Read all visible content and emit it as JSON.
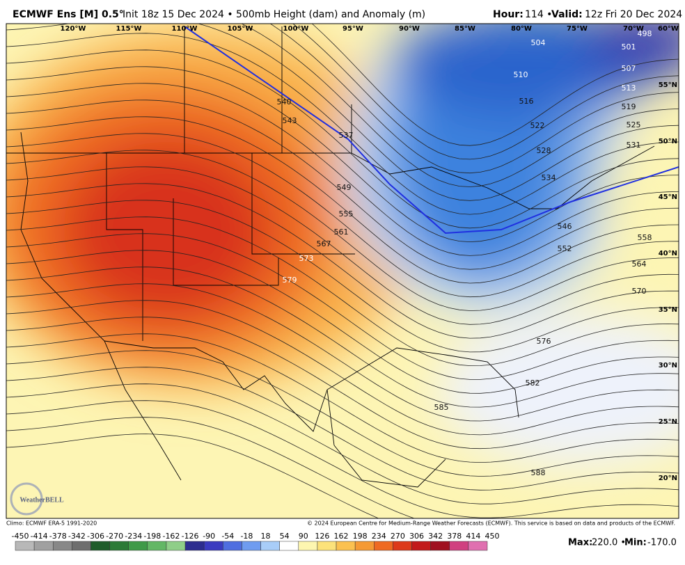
{
  "header": {
    "model": "ECMWF Ens [M] 0.5°",
    "description": "Init 18z 15 Dec 2024 • 500mb Height (dam) and Anomaly (m)",
    "hour_label": "Hour:",
    "hour": "114 •",
    "valid_label": "Valid:",
    "valid": "12z Fri 20 Dec 2024"
  },
  "map": {
    "longitudes": [
      "120°W",
      "115°W",
      "110°W",
      "105°W",
      "100°W",
      "95°W",
      "90°W",
      "85°W",
      "80°W",
      "75°W",
      "70°W",
      "60°W"
    ],
    "latitudes": [
      "55°N",
      "50°N",
      "45°N",
      "40°N",
      "35°N",
      "30°N",
      "25°N",
      "20°N"
    ],
    "contour_labels": [
      "540",
      "543",
      "537",
      "549",
      "555",
      "561",
      "567",
      "573",
      "579",
      "498",
      "501",
      "504",
      "507",
      "510",
      "513",
      "516",
      "519",
      "522",
      "525",
      "528",
      "531",
      "534",
      "546",
      "552",
      "558",
      "564",
      "570",
      "576",
      "582",
      "585",
      "588"
    ]
  },
  "footer": {
    "climo": "Climo: ECMWF ERA-5 1991-2020",
    "copyright": "© 2024 European Centre for Medium-Range Weather Forecasts (ECMWF). This service is based on data and products of the ECMWF.",
    "logo": "WeatherBELL"
  },
  "colorbar": {
    "ticks": [
      "-450",
      "-414",
      "-378",
      "-342",
      "-306",
      "-270",
      "-234",
      "-198",
      "-162",
      "-126",
      "-90",
      "-54",
      "-18",
      "18",
      "54",
      "90",
      "126",
      "162",
      "198",
      "234",
      "270",
      "306",
      "342",
      "378",
      "414",
      "450"
    ]
  },
  "stats": {
    "max_label": "Max:",
    "max": "220.0 •",
    "min_label": "Min:",
    "min": "-170.0"
  }
}
